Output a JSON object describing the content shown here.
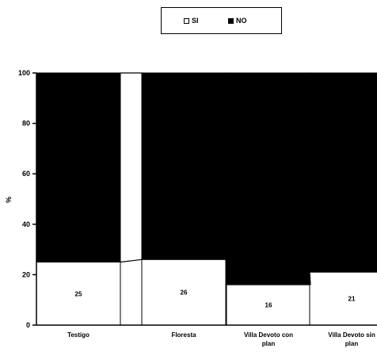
{
  "chart_data": {
    "type": "bar",
    "stacked": true,
    "stacking": "percent",
    "categories": [
      "Testigo",
      "Floresta",
      "Villa Devoto con plan",
      "Villa Devoto sin plan"
    ],
    "category_lines": [
      [
        "Testigo"
      ],
      [
        "Floresta"
      ],
      [
        "Villa Devoto con",
        "plan"
      ],
      [
        "Villa Devoto sin",
        "plan"
      ]
    ],
    "series": [
      {
        "name": "SI",
        "values": [
          25,
          26,
          16,
          21
        ],
        "color": "#ffffff"
      },
      {
        "name": "NO",
        "values": [
          75,
          74,
          84,
          79
        ],
        "color": "#000000"
      }
    ],
    "data_labels": [
      "25",
      "26",
      "16",
      "21"
    ],
    "ylabel": "%",
    "ylim": [
      0,
      100
    ],
    "yticks": [
      0,
      20,
      40,
      60,
      80,
      100
    ],
    "series_lines": true,
    "legend_position": "top-center",
    "grid": false
  }
}
